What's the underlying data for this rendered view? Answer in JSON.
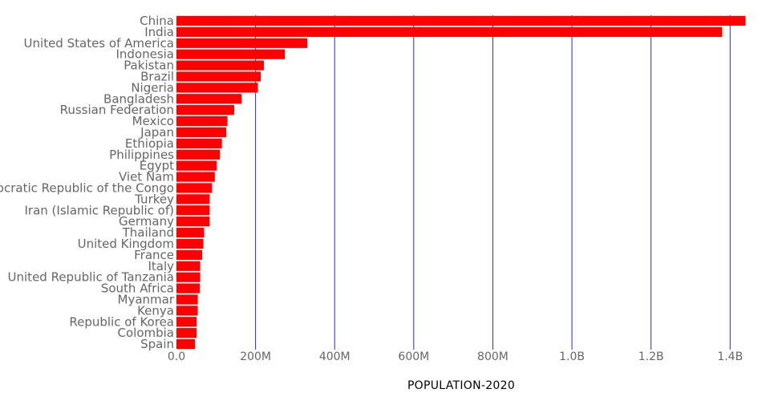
{
  "chart_data": {
    "type": "bar",
    "orientation": "horizontal",
    "categories": [
      "China",
      "India",
      "United States of America",
      "Indonesia",
      "Pakistan",
      "Brazil",
      "Nigeria",
      "Bangladesh",
      "Russian Federation",
      "Mexico",
      "Japan",
      "Ethiopia",
      "Philippines",
      "Egypt",
      "Viet Nam",
      "Democratic Republic of the Congo",
      "Turkey",
      "Iran (Islamic Republic of)",
      "Germany",
      "Thailand",
      "United Kingdom",
      "France",
      "Italy",
      "United Republic of Tanzania",
      "South Africa",
      "Myanmar",
      "Kenya",
      "Republic of Korea",
      "Colombia",
      "Spain"
    ],
    "values": [
      1439000000,
      1380000000,
      331000000,
      274000000,
      221000000,
      213000000,
      206000000,
      165000000,
      146000000,
      129000000,
      126000000,
      115000000,
      110000000,
      102000000,
      97000000,
      90000000,
      84000000,
      84000000,
      84000000,
      70000000,
      68000000,
      65000000,
      60000000,
      60000000,
      59000000,
      54000000,
      54000000,
      51000000,
      51000000,
      47000000
    ],
    "x_ticks": [
      0,
      200000000,
      400000000,
      600000000,
      800000000,
      1000000000,
      1200000000,
      1400000000
    ],
    "x_tick_labels": [
      "0.0",
      "200M",
      "400M",
      "600M",
      "800M",
      "1.0B",
      "1.2B",
      "1.4B"
    ],
    "xlim": [
      0,
      1440000000
    ],
    "xlabel": "POPULATION-2020",
    "ylabel": "",
    "title": "",
    "grid": "vertical",
    "colors": {
      "bar": "#ff0000",
      "grid": "#2a2ad6"
    }
  }
}
